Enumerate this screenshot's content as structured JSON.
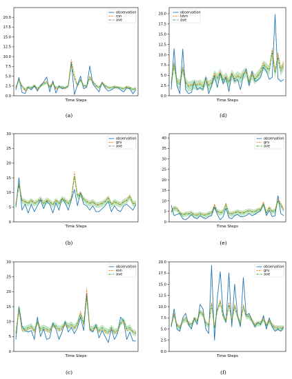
{
  "colors": {
    "observation": "#1f77b4",
    "model": "#ff7f0e",
    "ave": "#2ca02c",
    "band": "#2ca02c"
  },
  "chart_data": [
    {
      "type": "line",
      "panel": "a",
      "caption": "(a)",
      "xlabel": "Time Steps",
      "ylim": [
        0,
        22.5
      ],
      "yticks": [
        "0.0",
        "2.5",
        "5.0",
        "7.5",
        "10.0",
        "12.5",
        "15.0",
        "17.5",
        "20.0"
      ],
      "ytick_values": [
        0,
        2.5,
        5,
        7.5,
        10,
        12.5,
        15,
        17.5,
        20
      ],
      "legend": "top-right",
      "band_width": 0.4,
      "series": [
        {
          "name": "observation",
          "role": "observation",
          "style": "solid",
          "values": [
            1.5,
            4.7,
            0.8,
            0.6,
            2.2,
            1.5,
            2.5,
            1.2,
            2.6,
            3.5,
            4.8,
            1.0,
            3.8,
            0.7,
            2.5,
            1.8,
            2.0,
            2.5,
            8.6,
            0.3,
            2.8,
            5.0,
            1.8,
            2.2,
            7.6,
            3.0,
            2.0,
            1.0,
            3.5,
            2.0,
            1.2,
            1.5,
            2.0,
            2.2,
            1.5,
            1.0,
            2.0,
            1.8,
            0.5,
            1.6
          ]
        },
        {
          "name": "rnn",
          "role": "model",
          "style": "dashed",
          "values": [
            2.0,
            4.2,
            2.6,
            1.2,
            2.0,
            1.9,
            2.8,
            1.5,
            2.4,
            3.3,
            3.6,
            2.4,
            3.4,
            1.6,
            2.2,
            2.2,
            1.8,
            2.6,
            9.2,
            5.4,
            2.4,
            4.2,
            2.6,
            2.5,
            5.0,
            3.8,
            2.5,
            2.0,
            3.4,
            2.6,
            2.0,
            2.1,
            2.4,
            2.2,
            2.0,
            1.8,
            2.4,
            2.2,
            1.6,
            2.0
          ]
        },
        {
          "name": "ave",
          "role": "ave",
          "style": "dashdot",
          "values": [
            2.2,
            4.0,
            2.4,
            1.6,
            2.2,
            2.0,
            2.6,
            1.8,
            2.5,
            3.0,
            3.4,
            2.2,
            3.2,
            2.0,
            2.3,
            2.2,
            2.0,
            2.4,
            8.0,
            4.5,
            2.6,
            4.0,
            2.6,
            2.4,
            4.6,
            3.5,
            2.6,
            2.1,
            3.2,
            2.5,
            2.1,
            2.0,
            2.3,
            2.1,
            2.0,
            1.8,
            2.2,
            2.0,
            1.6,
            1.9
          ]
        }
      ]
    },
    {
      "type": "line",
      "panel": "d",
      "caption": "(d)",
      "xlabel": "Time Steps",
      "ylim": [
        0,
        21.5
      ],
      "yticks": [
        "0.0",
        "2.5",
        "5.0",
        "7.5",
        "10.0",
        "12.5",
        "15.0",
        "17.5",
        "20.0"
      ],
      "ytick_values": [
        0,
        2.5,
        5,
        7.5,
        10,
        12.5,
        15,
        17.5,
        20
      ],
      "legend": "top-left",
      "band_width": 1.2,
      "series": [
        {
          "name": "observation",
          "role": "observation",
          "style": "solid",
          "values": [
            1.5,
            11.5,
            2.5,
            0.5,
            11.4,
            1.5,
            0.5,
            0.8,
            3.5,
            1.5,
            2.0,
            1.5,
            4.5,
            0.5,
            2.5,
            4.8,
            2.0,
            5.5,
            3.0,
            4.5,
            1.0,
            5.5,
            3.5,
            4.0,
            1.5,
            5.0,
            6.5,
            2.5,
            6.0,
            3.5,
            3.8,
            4.5,
            7.0,
            6.0,
            4.0,
            4.5,
            19.8,
            4.2,
            3.5,
            4.0
          ]
        },
        {
          "name": "lstm",
          "role": "model",
          "style": "dashed",
          "values": [
            3.5,
            8.0,
            3.6,
            3.2,
            7.0,
            3.5,
            2.5,
            2.8,
            3.0,
            2.8,
            3.2,
            2.5,
            4.0,
            2.8,
            3.2,
            5.5,
            4.5,
            5.8,
            4.0,
            4.8,
            3.5,
            5.5,
            4.2,
            5.0,
            4.5,
            5.5,
            6.0,
            3.5,
            5.5,
            4.2,
            5.0,
            6.0,
            8.0,
            7.0,
            6.5,
            11.5,
            6.0,
            10.5,
            6.5,
            8.0
          ]
        },
        {
          "name": "ave",
          "role": "ave",
          "style": "dashdot",
          "values": [
            3.0,
            7.5,
            3.2,
            2.8,
            6.5,
            3.2,
            2.2,
            2.5,
            2.8,
            2.5,
            2.8,
            2.2,
            3.8,
            2.5,
            3.0,
            5.0,
            4.2,
            5.5,
            3.8,
            4.5,
            3.2,
            5.2,
            4.0,
            4.8,
            4.2,
            5.2,
            5.8,
            3.2,
            5.2,
            4.0,
            4.8,
            5.8,
            7.5,
            6.8,
            6.2,
            10.5,
            5.5,
            9.5,
            6.0,
            7.5
          ]
        }
      ]
    },
    {
      "type": "line",
      "panel": "b",
      "caption": "(b)",
      "xlabel": "Time Steps",
      "ylim": [
        0,
        30
      ],
      "yticks": [
        "0",
        "5",
        "10",
        "15",
        "20",
        "25",
        "30"
      ],
      "ytick_values": [
        0,
        5,
        10,
        15,
        20,
        25,
        30
      ],
      "legend": "top-right",
      "band_width": 1.0,
      "series": [
        {
          "name": "observation",
          "role": "observation",
          "style": "solid",
          "values": [
            5.0,
            15.0,
            4.0,
            6.0,
            3.0,
            6.0,
            3.5,
            5.5,
            7.5,
            4.5,
            7.0,
            6.0,
            3.0,
            6.5,
            4.0,
            8.0,
            6.5,
            4.0,
            7.5,
            11.0,
            5.5,
            10.0,
            6.0,
            5.5,
            4.0,
            5.5,
            3.5,
            3.5,
            4.5,
            5.5,
            7.0,
            3.5,
            5.5,
            4.0,
            3.5,
            5.5,
            6.0,
            5.0,
            4.0,
            6.0
          ]
        },
        {
          "name": "gru",
          "role": "model",
          "style": "dashed",
          "values": [
            6.0,
            13.0,
            7.5,
            7.0,
            6.5,
            7.5,
            6.5,
            7.0,
            8.0,
            6.5,
            7.5,
            7.0,
            6.0,
            7.5,
            6.5,
            8.0,
            7.5,
            6.5,
            8.0,
            17.0,
            9.0,
            10.0,
            8.0,
            7.0,
            6.5,
            7.0,
            6.0,
            6.0,
            6.5,
            7.0,
            8.5,
            6.0,
            7.0,
            6.5,
            6.0,
            7.0,
            7.5,
            9.0,
            6.5,
            6.5
          ]
        },
        {
          "name": "ave",
          "role": "ave",
          "style": "dashdot",
          "values": [
            5.8,
            12.5,
            7.2,
            6.8,
            6.2,
            7.2,
            6.2,
            6.8,
            7.8,
            6.2,
            7.2,
            6.8,
            5.8,
            7.2,
            6.2,
            7.8,
            7.2,
            6.2,
            7.6,
            15.5,
            8.5,
            9.5,
            7.6,
            6.8,
            6.2,
            6.8,
            5.8,
            5.8,
            6.2,
            6.8,
            8.0,
            5.8,
            6.8,
            6.2,
            5.8,
            6.8,
            7.2,
            8.5,
            6.2,
            6.2
          ]
        }
      ]
    },
    {
      "type": "line",
      "panel": "e",
      "caption": "(e)",
      "xlabel": "Time Steps",
      "ylim": [
        0,
        42
      ],
      "yticks": [
        "0",
        "5",
        "10",
        "15",
        "20",
        "25",
        "30",
        "35",
        "40"
      ],
      "ytick_values": [
        0,
        5,
        10,
        15,
        20,
        25,
        30,
        35,
        40
      ],
      "legend": "top-right",
      "band_width": 1.2,
      "series": [
        {
          "name": "observation",
          "role": "observation",
          "style": "solid",
          "values": [
            8.0,
            3.0,
            3.5,
            4.0,
            1.5,
            1.0,
            2.0,
            3.5,
            2.0,
            1.5,
            3.0,
            2.0,
            1.5,
            2.5,
            3.0,
            7.0,
            3.5,
            1.0,
            2.5,
            6.5,
            2.0,
            1.5,
            3.0,
            3.5,
            2.5,
            2.5,
            3.0,
            4.0,
            3.0,
            3.5,
            4.5,
            5.5,
            8.5,
            3.0,
            5.5,
            2.5,
            3.0,
            12.5,
            4.0,
            3.0
          ]
        },
        {
          "name": "gru",
          "role": "model",
          "style": "dashed",
          "values": [
            5.0,
            7.0,
            6.5,
            4.5,
            3.5,
            4.0,
            4.0,
            4.5,
            3.5,
            3.5,
            4.0,
            3.5,
            3.5,
            4.0,
            4.5,
            8.5,
            5.0,
            4.5,
            5.0,
            9.0,
            4.0,
            4.0,
            4.5,
            5.0,
            4.5,
            4.5,
            5.0,
            5.5,
            5.0,
            5.0,
            6.0,
            6.0,
            9.5,
            4.5,
            7.0,
            5.0,
            5.5,
            11.0,
            9.0,
            6.0
          ]
        },
        {
          "name": "ave",
          "role": "ave",
          "style": "dashdot",
          "values": [
            4.8,
            6.5,
            6.0,
            4.2,
            3.2,
            3.8,
            3.8,
            4.2,
            3.2,
            3.2,
            3.8,
            3.2,
            3.2,
            3.8,
            4.2,
            7.5,
            4.8,
            4.2,
            4.8,
            8.0,
            3.8,
            3.8,
            4.2,
            4.8,
            4.2,
            4.2,
            4.8,
            5.2,
            4.8,
            4.8,
            5.5,
            5.8,
            8.5,
            4.2,
            6.5,
            4.8,
            5.2,
            10.0,
            8.0,
            5.5
          ]
        }
      ]
    },
    {
      "type": "line",
      "panel": "c",
      "caption": "(c)",
      "xlabel": "Time Steps",
      "ylim": [
        0,
        30
      ],
      "yticks": [
        "0",
        "5",
        "10",
        "15",
        "20",
        "25",
        "30"
      ],
      "ytick_values": [
        0,
        5,
        10,
        15,
        20,
        25,
        30
      ],
      "legend": "top-right",
      "band_width": 1.0,
      "series": [
        {
          "name": "observation",
          "role": "observation",
          "style": "solid",
          "values": [
            4.0,
            15.0,
            8.5,
            7.0,
            6.5,
            7.0,
            4.0,
            11.5,
            5.0,
            7.5,
            4.0,
            4.5,
            9.5,
            7.5,
            4.0,
            6.5,
            10.0,
            6.5,
            8.0,
            6.0,
            8.0,
            11.5,
            7.0,
            19.5,
            7.5,
            6.5,
            9.0,
            4.5,
            7.0,
            5.0,
            3.0,
            7.5,
            4.0,
            6.0,
            11.5,
            10.0,
            4.0,
            6.5,
            3.5,
            3.5
          ]
        },
        {
          "name": "esn",
          "role": "model",
          "style": "dashed",
          "values": [
            6.0,
            13.5,
            7.0,
            7.0,
            7.5,
            8.0,
            6.5,
            9.5,
            7.0,
            7.5,
            7.0,
            6.5,
            8.5,
            8.0,
            7.0,
            7.5,
            9.0,
            8.0,
            8.5,
            7.5,
            9.0,
            13.5,
            9.0,
            21.0,
            7.0,
            7.0,
            8.0,
            6.5,
            7.5,
            6.5,
            6.0,
            7.5,
            6.0,
            6.5,
            9.5,
            10.0,
            7.0,
            7.5,
            6.5,
            6.5
          ]
        },
        {
          "name": "ave",
          "role": "ave",
          "style": "dashdot",
          "values": [
            6.2,
            14.5,
            7.5,
            7.5,
            8.0,
            8.5,
            7.0,
            10.0,
            7.5,
            8.0,
            7.5,
            7.0,
            9.0,
            8.5,
            7.5,
            8.0,
            9.5,
            8.5,
            9.0,
            8.0,
            9.5,
            12.5,
            9.5,
            18.0,
            7.5,
            7.5,
            8.5,
            7.0,
            8.0,
            7.0,
            6.5,
            8.0,
            6.5,
            7.0,
            9.5,
            10.5,
            7.5,
            8.0,
            6.5,
            6.0
          ]
        }
      ]
    },
    {
      "type": "line",
      "panel": "f",
      "caption": "(f)",
      "xlabel": "Time Steps",
      "ylim": [
        0,
        20
      ],
      "yticks": [
        "0.0",
        "2.5",
        "5.0",
        "7.5",
        "10.0",
        "12.5",
        "15.0",
        "17.5",
        "20.0"
      ],
      "ytick_values": [
        0,
        2.5,
        5,
        7.5,
        10,
        12.5,
        15,
        17.5,
        20
      ],
      "legend": "top-right",
      "band_width": 0.6,
      "series": [
        {
          "name": "observation",
          "role": "observation",
          "style": "solid",
          "values": [
            5.5,
            9.5,
            5.0,
            4.5,
            7.5,
            8.5,
            6.0,
            5.0,
            7.5,
            6.0,
            10.5,
            9.5,
            5.0,
            4.0,
            19.2,
            2.5,
            12.0,
            17.8,
            8.5,
            6.5,
            17.5,
            5.5,
            15.0,
            8.0,
            5.5,
            16.5,
            8.0,
            8.5,
            7.0,
            5.5,
            6.5,
            6.0,
            8.0,
            5.0,
            7.5,
            5.5,
            4.5,
            5.0,
            4.5,
            5.5
          ]
        },
        {
          "name": "gru",
          "role": "model",
          "style": "dashed",
          "values": [
            6.0,
            8.5,
            6.0,
            5.5,
            7.0,
            7.5,
            6.5,
            6.0,
            7.5,
            7.0,
            9.0,
            8.5,
            6.5,
            6.0,
            11.0,
            5.5,
            9.5,
            11.5,
            8.0,
            7.0,
            11.0,
            7.0,
            10.5,
            8.0,
            6.5,
            10.5,
            8.0,
            8.0,
            7.0,
            6.0,
            6.5,
            6.5,
            7.5,
            6.0,
            7.0,
            6.0,
            5.5,
            5.5,
            5.5,
            5.5
          ]
        },
        {
          "name": "ave",
          "role": "ave",
          "style": "dashdot",
          "values": [
            5.8,
            8.2,
            5.8,
            5.2,
            6.8,
            7.2,
            6.2,
            5.8,
            7.2,
            6.8,
            8.8,
            8.2,
            6.2,
            5.8,
            10.5,
            5.2,
            9.2,
            11.0,
            7.8,
            6.8,
            10.5,
            6.8,
            10.0,
            7.8,
            6.2,
            10.0,
            7.8,
            7.8,
            6.8,
            5.8,
            6.2,
            6.2,
            7.2,
            5.8,
            6.8,
            5.8,
            5.2,
            5.2,
            5.2,
            5.2
          ]
        }
      ]
    }
  ]
}
